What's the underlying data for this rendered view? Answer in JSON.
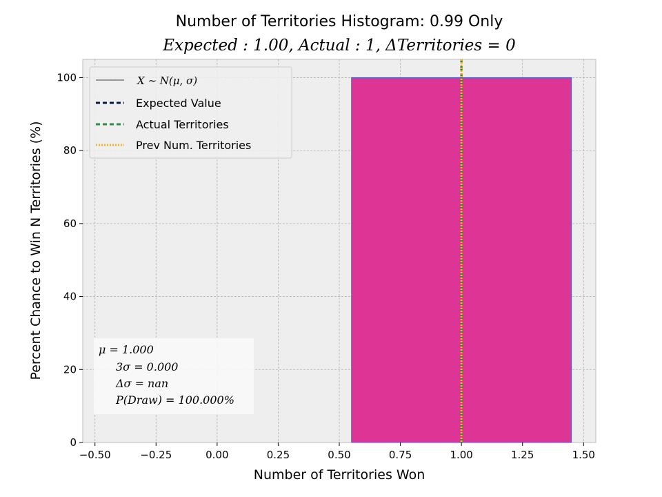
{
  "chart_data": {
    "type": "bar",
    "title": "Number of Territories Histogram: 0.99 Only",
    "subtitle": "Expected : 1.00, Actual : 1, ΔTerritories = 0",
    "xlabel": "Number of Territories Won",
    "ylabel": "Percent Chance to Win N Territories (%)",
    "xlim": [
      -0.55,
      1.55
    ],
    "ylim": [
      0,
      105
    ],
    "xticks": [
      -0.5,
      -0.25,
      0.0,
      0.25,
      0.5,
      0.75,
      1.0,
      1.25,
      1.5
    ],
    "xtick_labels": [
      "−0.50",
      "−0.25",
      "0.00",
      "0.25",
      "0.50",
      "0.75",
      "1.00",
      "1.25",
      "1.50"
    ],
    "yticks": [
      0,
      20,
      40,
      60,
      80,
      100
    ],
    "ytick_labels": [
      "0",
      "20",
      "40",
      "60",
      "80",
      "100"
    ],
    "grid": true,
    "bars": [
      {
        "x0": 0.55,
        "x1": 1.45,
        "value": 100,
        "color": "#dc3596",
        "edge_color": "#4a5fc1"
      }
    ],
    "vlines": [
      {
        "name": "Expected Value",
        "x": 1.0,
        "color": "#0b1845",
        "style": "dashed"
      },
      {
        "name": "Actual Territories",
        "x": 1.0,
        "color": "#2f8a46",
        "style": "dashed"
      },
      {
        "name": "Prev Num. Territories",
        "x": 1.0,
        "color": "#ffb21a",
        "style": "dotted"
      }
    ],
    "legend": {
      "placement": "top-left",
      "entries": [
        {
          "label": "X ∼ N(μ, σ)",
          "style": "solid-thin",
          "color": "#000000"
        },
        {
          "label": "Expected Value",
          "style": "dashed",
          "color": "#0b1845"
        },
        {
          "label": "Actual Territories",
          "style": "dashed",
          "color": "#2f8a46"
        },
        {
          "label": "Prev Num. Territories",
          "style": "dotted",
          "color": "#ffb21a"
        }
      ]
    },
    "stats_box": {
      "placement": "bottom-left",
      "lines": [
        "μ = 1.000",
        "3σ = 0.000",
        "Δσ = nan",
        "P(Draw) = 100.000%"
      ]
    }
  }
}
